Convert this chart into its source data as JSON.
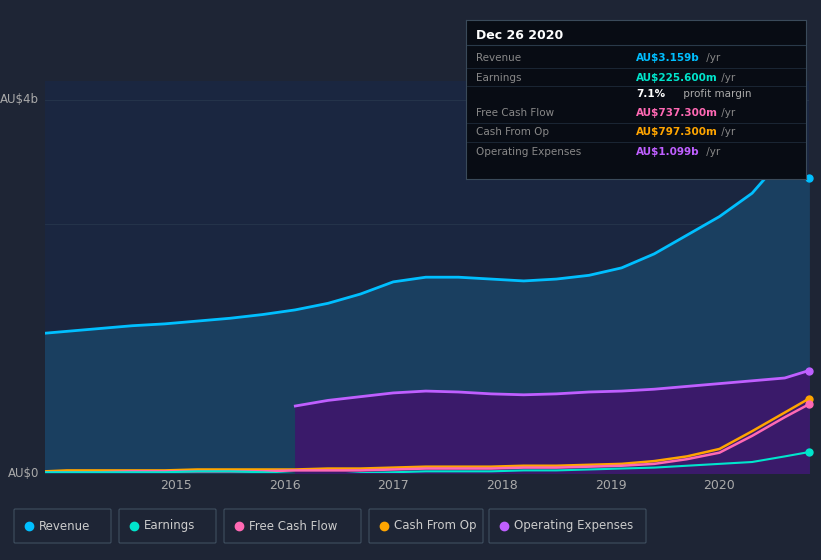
{
  "background_color": "#1e2535",
  "plot_bg_color": "#1a2640",
  "outer_bg_color": "#222d3d",
  "grid_color": "#2a3a50",
  "title_box": {
    "title": "Dec 26 2020",
    "rows": [
      {
        "label": "Revenue",
        "value": "AU$3.159b",
        "suffix": " /yr",
        "value_color": "#00bfff"
      },
      {
        "label": "Earnings",
        "value": "AU$225.600m",
        "suffix": " /yr",
        "value_color": "#00e5cc"
      },
      {
        "label": "",
        "value": "7.1%",
        "suffix": " profit margin",
        "value_color": "#ffffff",
        "suffix_color": "#cccccc"
      },
      {
        "label": "Free Cash Flow",
        "value": "AU$737.300m",
        "suffix": " /yr",
        "value_color": "#ff69b4"
      },
      {
        "label": "Cash From Op",
        "value": "AU$797.300m",
        "suffix": " /yr",
        "value_color": "#ffa500"
      },
      {
        "label": "Operating Expenses",
        "value": "AU$1.099b",
        "suffix": " /yr",
        "value_color": "#bf5fff"
      }
    ]
  },
  "years": [
    2013.8,
    2014.0,
    2014.3,
    2014.6,
    2014.9,
    2015.2,
    2015.5,
    2015.8,
    2016.1,
    2016.4,
    2016.7,
    2017.0,
    2017.3,
    2017.6,
    2017.9,
    2018.2,
    2018.5,
    2018.8,
    2019.1,
    2019.4,
    2019.7,
    2020.0,
    2020.3,
    2020.6,
    2020.82
  ],
  "revenue": [
    1.5,
    1.52,
    1.55,
    1.58,
    1.6,
    1.63,
    1.66,
    1.7,
    1.75,
    1.82,
    1.92,
    2.05,
    2.1,
    2.1,
    2.08,
    2.06,
    2.08,
    2.12,
    2.2,
    2.35,
    2.55,
    2.75,
    3.0,
    3.4,
    3.159
  ],
  "earnings": [
    0.01,
    0.01,
    0.01,
    0.01,
    0.01,
    0.02,
    0.02,
    0.01,
    -0.01,
    -0.02,
    0.0,
    0.01,
    0.02,
    0.02,
    0.02,
    0.03,
    0.03,
    0.04,
    0.05,
    0.06,
    0.08,
    0.1,
    0.12,
    0.18,
    0.226
  ],
  "free_cash_flow": [
    0.01,
    0.01,
    0.01,
    0.02,
    0.02,
    0.02,
    0.02,
    0.02,
    0.03,
    0.03,
    0.03,
    0.04,
    0.05,
    0.05,
    0.05,
    0.06,
    0.06,
    0.07,
    0.08,
    0.1,
    0.15,
    0.22,
    0.4,
    0.6,
    0.737
  ],
  "cash_from_op": [
    0.02,
    0.03,
    0.03,
    0.03,
    0.03,
    0.04,
    0.04,
    0.04,
    0.04,
    0.05,
    0.05,
    0.06,
    0.07,
    0.07,
    0.07,
    0.08,
    0.08,
    0.09,
    0.1,
    0.13,
    0.18,
    0.26,
    0.45,
    0.65,
    0.797
  ],
  "op_expenses": [
    0.0,
    0.0,
    0.0,
    0.0,
    0.0,
    0.0,
    0.0,
    0.0,
    0.72,
    0.78,
    0.82,
    0.86,
    0.88,
    0.87,
    0.85,
    0.84,
    0.85,
    0.87,
    0.88,
    0.9,
    0.93,
    0.96,
    0.99,
    1.02,
    1.099
  ],
  "revenue_color": "#00bfff",
  "revenue_fill": "#1a3f60",
  "earnings_color": "#00e5cc",
  "free_cf_color": "#ff69b4",
  "cash_op_color": "#ffa500",
  "op_exp_color": "#bf5fff",
  "op_exp_fill": "#3a1a6a",
  "ylim": [
    0,
    4.2
  ],
  "xlim_start": 2013.8,
  "xlim_end": 2020.82,
  "xlabel_year_positions": [
    2015,
    2016,
    2017,
    2018,
    2019,
    2020
  ],
  "ytick_positions": [
    0,
    4
  ],
  "ytick_labels": [
    "AU$0",
    "AU$4b"
  ],
  "grid_lines": [
    0,
    1.33,
    2.67,
    4.0
  ],
  "legend_items": [
    {
      "label": "Revenue",
      "color": "#00bfff"
    },
    {
      "label": "Earnings",
      "color": "#00e5cc"
    },
    {
      "label": "Free Cash Flow",
      "color": "#ff69b4"
    },
    {
      "label": "Cash From Op",
      "color": "#ffa500"
    },
    {
      "label": "Operating Expenses",
      "color": "#bf5fff"
    }
  ]
}
